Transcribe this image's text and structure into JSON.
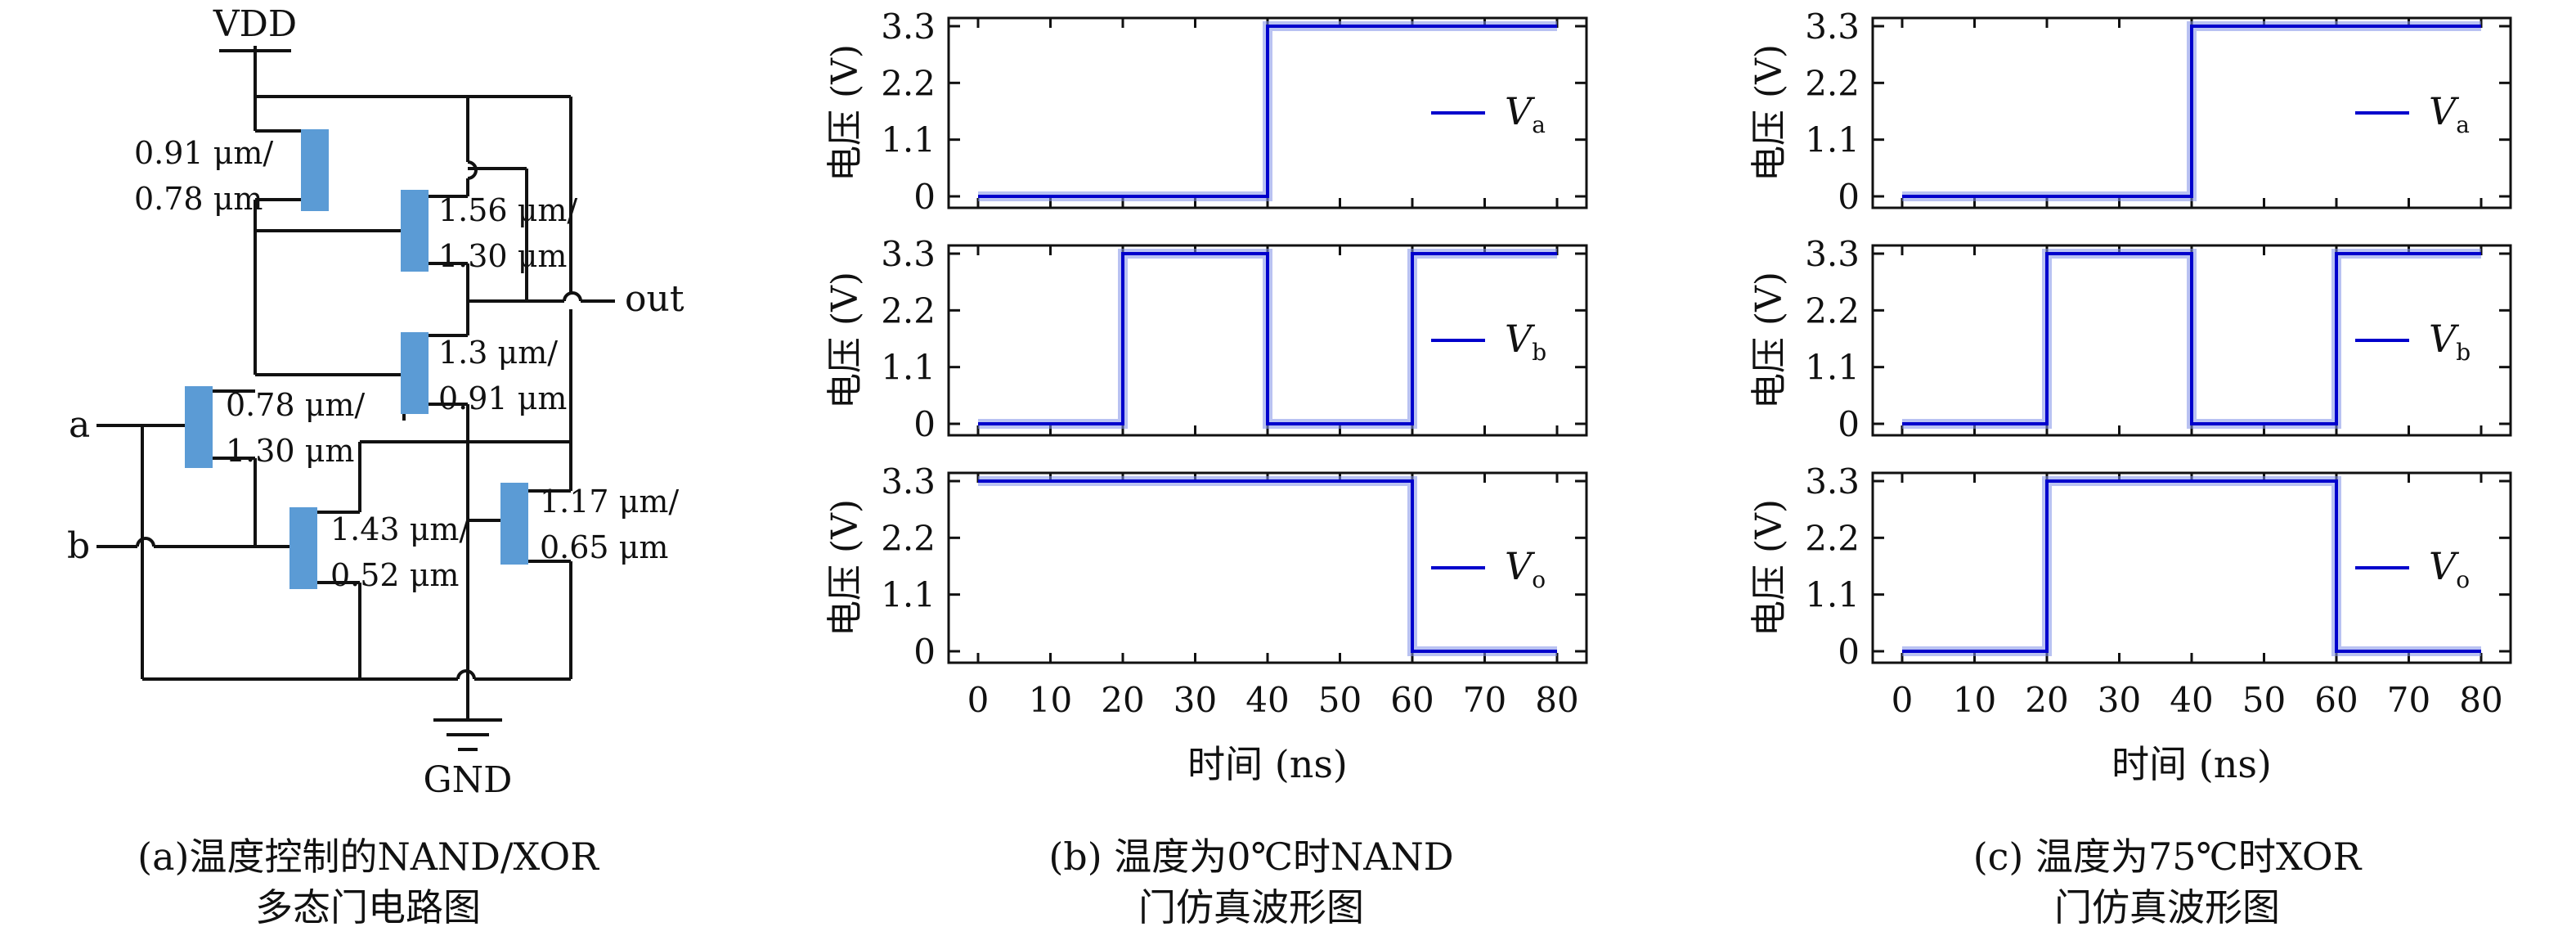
{
  "circuit": {
    "vdd": "VDD",
    "gnd": "GND",
    "input_a": "a",
    "input_b": "b",
    "output": "out",
    "transistors": [
      {
        "w": "0.91 μm/",
        "l": "0.78 μm"
      },
      {
        "w": "1.56 μm/",
        "l": "1.30 μm"
      },
      {
        "w": "1.3 μm/",
        "l": "0.91 μm"
      },
      {
        "w": "0.78 μm/",
        "l": "1.30 μm"
      },
      {
        "w": "1.43 μm/",
        "l": "0.52 μm"
      },
      {
        "w": "1.17 μm/",
        "l": "0.65 μm"
      }
    ],
    "transistor_color": "#5b9bd5"
  },
  "captions": {
    "a_line1": "(a)温度控制的NAND/XOR",
    "a_line2": "多态门电路图",
    "b_line1": "(b) 温度为0℃时NAND",
    "b_line2": "门仿真波形图",
    "c_line1": "(c) 温度为75℃时XOR",
    "c_line2": "门仿真波形图"
  },
  "chart_data": [
    {
      "type": "line",
      "panel": "b",
      "xlabel": "时间 (ns)",
      "xlim": [
        0,
        80
      ],
      "xticks": [
        0,
        10,
        20,
        30,
        40,
        50,
        60,
        70,
        80
      ],
      "ylim": [
        0,
        3.3
      ],
      "yticks": [
        "0",
        "1.1",
        "2.2",
        "3.3"
      ],
      "ylabel": "电压 (V)",
      "line_color": "#0000cc",
      "series": [
        {
          "name": "Va",
          "sub": "a",
          "x": [
            0,
            40,
            40,
            80
          ],
          "y": [
            0,
            0,
            3.3,
            3.3
          ]
        },
        {
          "name": "Vb",
          "sub": "b",
          "x": [
            0,
            20,
            20,
            40,
            40,
            60,
            60,
            80
          ],
          "y": [
            0,
            0,
            3.3,
            3.3,
            0,
            0,
            3.3,
            3.3
          ]
        },
        {
          "name": "Vo",
          "sub": "o",
          "x": [
            0,
            60,
            60,
            80
          ],
          "y": [
            3.3,
            3.3,
            0,
            0
          ]
        }
      ]
    },
    {
      "type": "line",
      "panel": "c",
      "xlabel": "时间 (ns)",
      "xlim": [
        0,
        80
      ],
      "xticks": [
        0,
        10,
        20,
        30,
        40,
        50,
        60,
        70,
        80
      ],
      "ylim": [
        0,
        3.3
      ],
      "yticks": [
        "0",
        "1.1",
        "2.2",
        "3.3"
      ],
      "ylabel": "电压 (V)",
      "line_color": "#0000cc",
      "series": [
        {
          "name": "Va",
          "sub": "a",
          "x": [
            0,
            40,
            40,
            80
          ],
          "y": [
            0,
            0,
            3.3,
            3.3
          ]
        },
        {
          "name": "Vb",
          "sub": "b",
          "x": [
            0,
            20,
            20,
            40,
            40,
            60,
            60,
            80
          ],
          "y": [
            0,
            0,
            3.3,
            3.3,
            0,
            0,
            3.3,
            3.3
          ]
        },
        {
          "name": "Vo",
          "sub": "o",
          "x": [
            0,
            20,
            20,
            60,
            60,
            80
          ],
          "y": [
            0,
            0,
            3.3,
            3.3,
            0,
            0
          ]
        }
      ]
    }
  ]
}
